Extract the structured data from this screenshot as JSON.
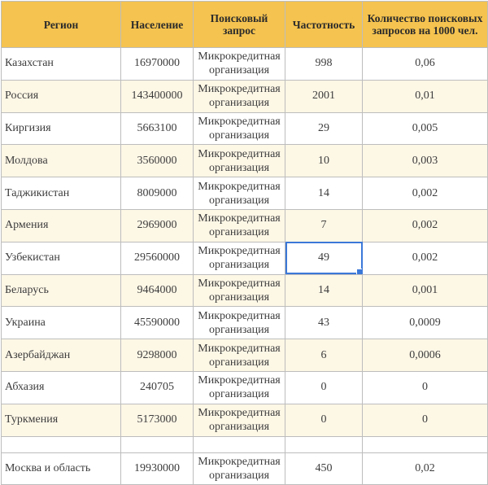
{
  "table": {
    "headers": [
      "Регион",
      "Население",
      "Поисковый запрос",
      "Частотность",
      "Количество поисковых запросов на 1000 чел."
    ],
    "rows": [
      {
        "region": "Казахстан",
        "population": "16970000",
        "query": "Микрокредитная организация",
        "frequency": "998",
        "per_1000": "0,06"
      },
      {
        "region": "Россия",
        "population": "143400000",
        "query": "Микрокредитная организация",
        "frequency": "2001",
        "per_1000": "0,01"
      },
      {
        "region": "Киргизия",
        "population": "5663100",
        "query": "Микрокредитная организация",
        "frequency": "29",
        "per_1000": "0,005"
      },
      {
        "region": "Молдова",
        "population": "3560000",
        "query": "Микрокредитная организация",
        "frequency": "10",
        "per_1000": "0,003"
      },
      {
        "region": "Таджикистан",
        "population": "8009000",
        "query": "Микрокредитная организация",
        "frequency": "14",
        "per_1000": "0,002"
      },
      {
        "region": "Армения",
        "population": "2969000",
        "query": "Микрокредитная организация",
        "frequency": "7",
        "per_1000": "0,002"
      },
      {
        "region": "Узбекистан",
        "population": "29560000",
        "query": "Микрокредитная организация",
        "frequency": "49",
        "per_1000": "0,002"
      },
      {
        "region": "Беларусь",
        "population": "9464000",
        "query": "Микрокредитная организация",
        "frequency": "14",
        "per_1000": "0,001"
      },
      {
        "region": "Украина",
        "population": "45590000",
        "query": "Микрокредитная организация",
        "frequency": "43",
        "per_1000": "0,0009"
      },
      {
        "region": "Азербайджан",
        "population": "9298000",
        "query": "Микрокредитная организация",
        "frequency": "6",
        "per_1000": "0,0006"
      },
      {
        "region": "Абхазия",
        "population": "240705",
        "query": "Микрокредитная организация",
        "frequency": "0",
        "per_1000": "0"
      },
      {
        "region": "Туркмения",
        "population": "5173000",
        "query": "Микрокредитная организация",
        "frequency": "0",
        "per_1000": "0"
      },
      {
        "region": "Москва и область",
        "population": "19930000",
        "query": "Микрокредитная организация",
        "frequency": "450",
        "per_1000": "0,02"
      }
    ]
  },
  "colors": {
    "header_bg": "#f5c34f",
    "row_tint": "#fdf7e6",
    "grid_line": "#bdbdbd",
    "selection": "#3b78d8"
  }
}
